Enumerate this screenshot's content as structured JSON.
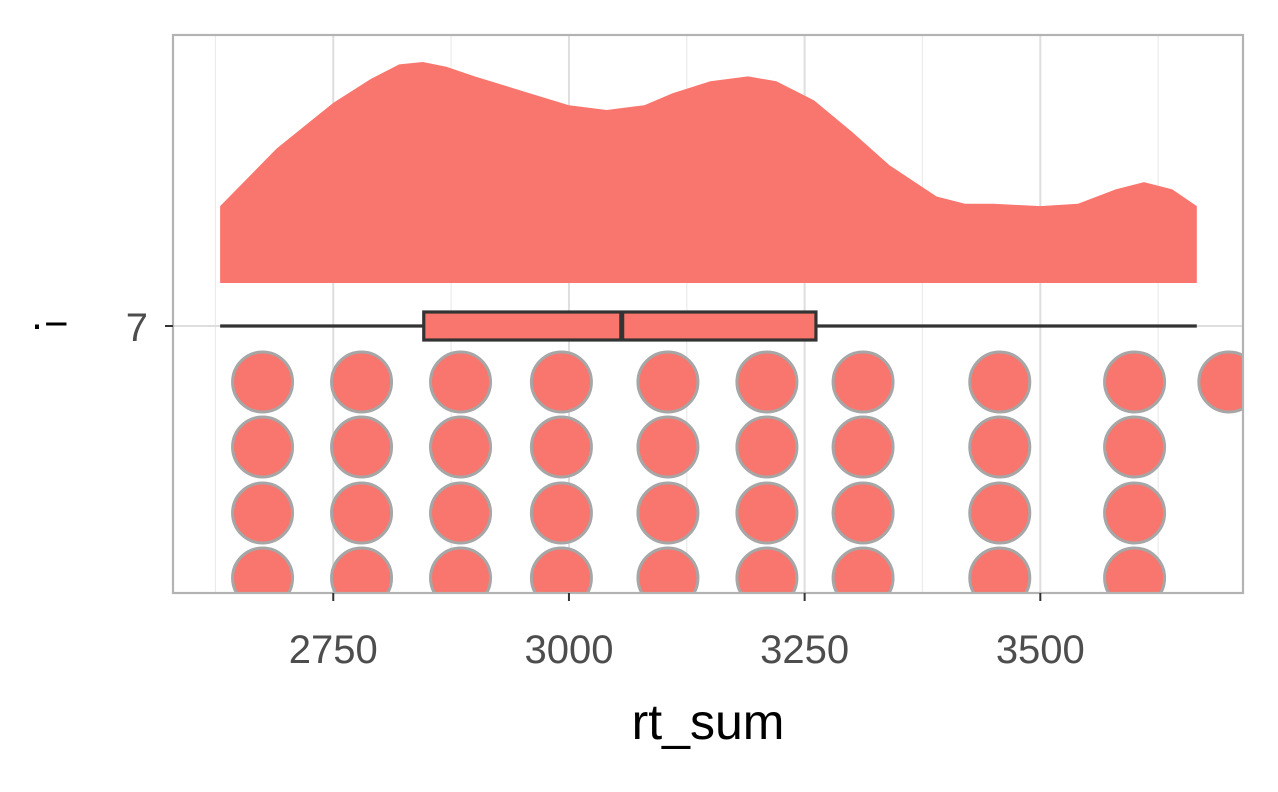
{
  "chart_data": {
    "type": "raincloud",
    "xlabel": "rt_sum",
    "ylabel": "",
    "xlim": [
      2580,
      3715
    ],
    "x_ticks": [
      2750,
      3000,
      3250,
      3500
    ],
    "x_tick_labels": [
      "2750",
      "3000",
      "3250",
      "3500"
    ],
    "y_categories": [
      "7"
    ],
    "grid": true,
    "fill_color": "#F8766D",
    "dot_outline_color": "#A6A6A6",
    "box_line_color": "#333333",
    "density_curve": {
      "x": [
        2630,
        2690,
        2750,
        2790,
        2820,
        2845,
        2870,
        2900,
        2950,
        3000,
        3040,
        3080,
        3110,
        3150,
        3190,
        3220,
        3260,
        3300,
        3340,
        3390,
        3420,
        3450,
        3500,
        3540,
        3580,
        3610,
        3640,
        3666
      ],
      "density": [
        0.32,
        0.56,
        0.75,
        0.85,
        0.91,
        0.92,
        0.9,
        0.86,
        0.8,
        0.74,
        0.72,
        0.74,
        0.79,
        0.84,
        0.86,
        0.84,
        0.76,
        0.63,
        0.49,
        0.36,
        0.33,
        0.33,
        0.32,
        0.33,
        0.39,
        0.42,
        0.39,
        0.32
      ]
    },
    "boxplot": {
      "min": 2630,
      "q1": 2846,
      "median": 3056,
      "q3": 3262,
      "max": 3666
    },
    "dot_columns": [
      {
        "x": 2675,
        "count": 4
      },
      {
        "x": 2780,
        "count": 4
      },
      {
        "x": 2885,
        "count": 4
      },
      {
        "x": 2992,
        "count": 4
      },
      {
        "x": 3105,
        "count": 4
      },
      {
        "x": 3210,
        "count": 4
      },
      {
        "x": 3312,
        "count": 4
      },
      {
        "x": 3457,
        "count": 4
      },
      {
        "x": 3600,
        "count": 4
      },
      {
        "x": 3700,
        "count": 1
      }
    ]
  },
  "legend_glyph": "·−"
}
